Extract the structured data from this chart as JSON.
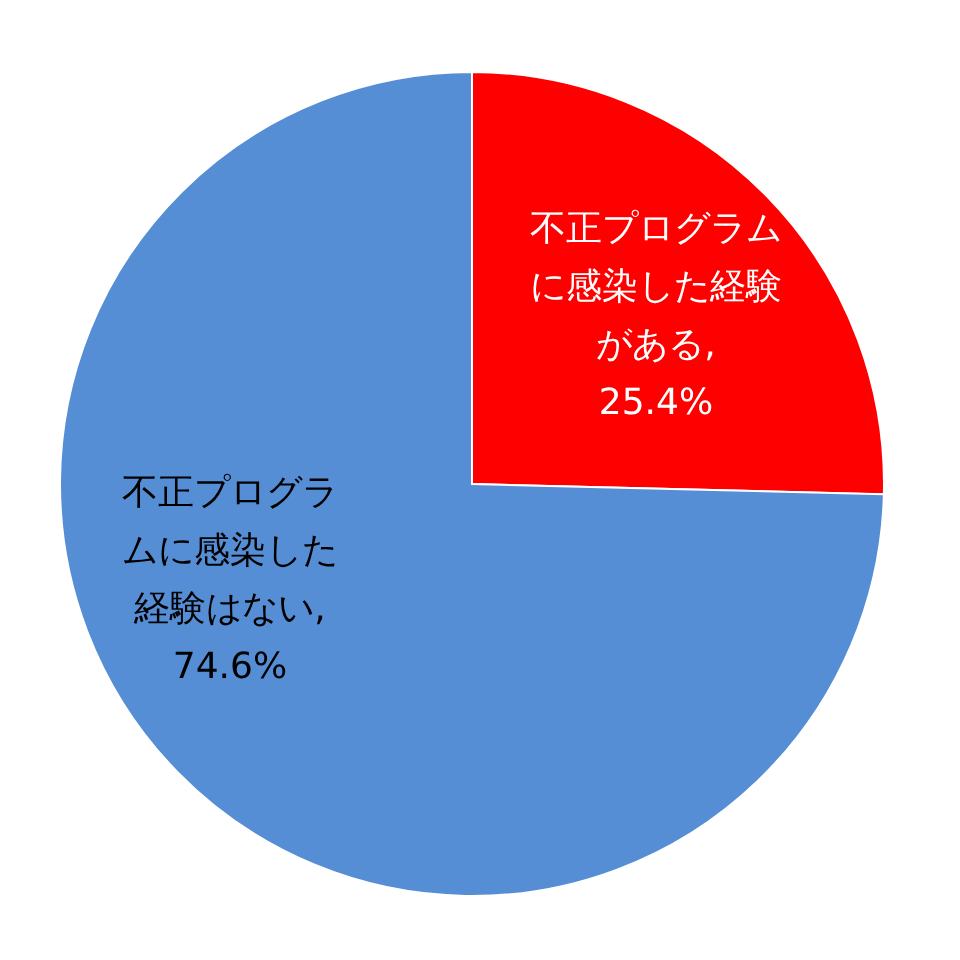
{
  "chart_data": {
    "type": "pie",
    "categories": [
      "不正プログラムに感染した経験がある",
      "不正プログラムに感染した経験はない"
    ],
    "values": [
      25.4,
      74.6
    ],
    "value_labels": [
      ",\n25.4%",
      ",\n74.6%"
    ],
    "colors": [
      "#ff0000",
      "#558ed5"
    ]
  }
}
